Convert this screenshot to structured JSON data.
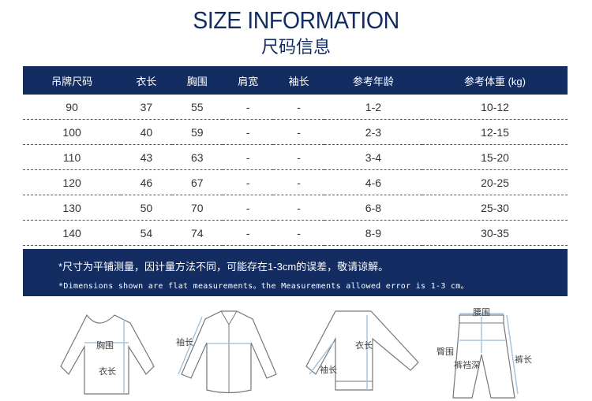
{
  "title": "SIZE INFORMATION",
  "subtitle": "尺码信息",
  "table": {
    "headers": [
      "吊牌尺码",
      "衣长",
      "胸围",
      "肩宽",
      "袖长",
      "参考年龄",
      "参考体重 (kg)"
    ],
    "rows": [
      [
        "90",
        "37",
        "55",
        "-",
        "-",
        "1-2",
        "10-12"
      ],
      [
        "100",
        "40",
        "59",
        "-",
        "-",
        "2-3",
        "12-15"
      ],
      [
        "110",
        "43",
        "63",
        "-",
        "-",
        "3-4",
        "15-20"
      ],
      [
        "120",
        "46",
        "67",
        "-",
        "-",
        "4-6",
        "20-25"
      ],
      [
        "130",
        "50",
        "70",
        "-",
        "-",
        "6-8",
        "25-30"
      ],
      [
        "140",
        "54",
        "74",
        "-",
        "-",
        "8-9",
        "30-35"
      ]
    ]
  },
  "note": {
    "zh": "*尺寸为平铺测量，因计量方法不同，可能存在1-3cm的误差，敬请谅解。",
    "en": "*Dimensions shown are flat measurements。the Measurements allowed error is 1-3 cm。"
  },
  "diagrams": {
    "chest": "胸围",
    "length": "衣长",
    "sleeve": "袖长",
    "length2": "衣长",
    "sleeve2": "袖长",
    "waist": "腰围",
    "hip": "臀围",
    "rise": "裤裆深",
    "pants_length": "裤长"
  },
  "colors": {
    "navy": "#132d63",
    "measure": "#a9c4e0"
  }
}
